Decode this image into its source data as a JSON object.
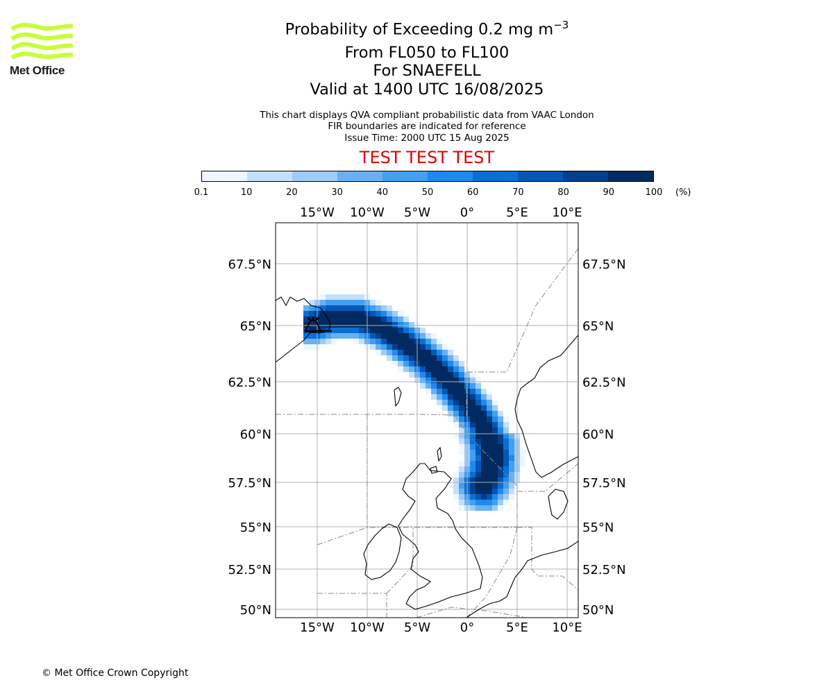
{
  "header": {
    "logo_text": "Met Office",
    "title_main": "Probability of Exceeding 0.2 mg m",
    "title_sup": "−3",
    "level_range": "From FL050 to FL100",
    "volcano": "For SNAEFELL",
    "valid": "Valid at 1400 UTC 16/08/2025",
    "description_line1": "This chart displays QVA compliant probabilistic data from VAAC London",
    "description_line2": "FIR boundaries are indicated for reference",
    "issue_time": "Issue Time: 2000 UTC 15 Aug 2025",
    "test_banner": "TEST TEST TEST"
  },
  "colors": {
    "brand_green": "#c6ff33",
    "test_red": "#e00000",
    "scale": [
      "#eef6ff",
      "#c5e0fa",
      "#9fcbf6",
      "#6ab0f2",
      "#42a0f0",
      "#1e8aef",
      "#0a6fd4",
      "#0457b3",
      "#024090",
      "#022a60"
    ]
  },
  "colorbar": {
    "ticks": [
      "0.1",
      "10",
      "20",
      "30",
      "40",
      "50",
      "60",
      "70",
      "80",
      "90",
      "100"
    ],
    "unit": "(%)"
  },
  "map": {
    "lon_labels": [
      "15°W",
      "10°W",
      "5°W",
      "0°",
      "5°E",
      "10°E"
    ],
    "lat_labels": [
      "67.5°N",
      "65°N",
      "62.5°N",
      "60°N",
      "57.5°N",
      "55°N",
      "52.5°N",
      "50°N"
    ],
    "source_marker": "volcano-symbol",
    "plume_peak_probability_pct": 100
  },
  "footer": {
    "copyright": "© Met Office Crown Copyright"
  }
}
